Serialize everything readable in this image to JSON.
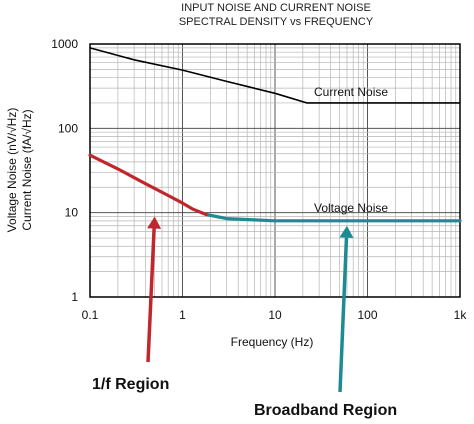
{
  "chart_data": {
    "type": "line",
    "title": "INPUT NOISE AND CURRENT NOISE",
    "subtitle": "SPECTRAL DENSITY vs FREQUENCY",
    "xlabel": "Frequency (Hz)",
    "ylabel_line1": "Voltage Noise (nV/√Hz)",
    "ylabel_line2": "Current Noise (fA/√Hz)",
    "x_scale": "log",
    "y_scale": "log",
    "xlim": [
      0.1,
      1000
    ],
    "ylim": [
      1,
      1000
    ],
    "grid": true,
    "x_ticks": [
      {
        "value": 0.1,
        "label": "0.1"
      },
      {
        "value": 1,
        "label": "1"
      },
      {
        "value": 10,
        "label": "10"
      },
      {
        "value": 100,
        "label": "100"
      },
      {
        "value": 1000,
        "label": "1k"
      }
    ],
    "y_ticks": [
      {
        "value": 1,
        "label": "1"
      },
      {
        "value": 10,
        "label": "10"
      },
      {
        "value": 100,
        "label": "100"
      },
      {
        "value": 1000,
        "label": "1000"
      }
    ],
    "series": [
      {
        "name": "Current Noise",
        "color": "#000000",
        "x": [
          0.1,
          0.3,
          1,
          3,
          10,
          22,
          100,
          1000
        ],
        "y": [
          900,
          650,
          490,
          360,
          260,
          200,
          200,
          200
        ]
      },
      {
        "name": "Voltage Noise",
        "color": "#1e8a94",
        "x": [
          1.8,
          3,
          10,
          100,
          1000
        ],
        "y": [
          9.5,
          8.5,
          8,
          8,
          8
        ]
      },
      {
        "name": "",
        "color": "#c0272d",
        "x": [
          0.1,
          0.2,
          0.4,
          0.7,
          1,
          1.3,
          1.8
        ],
        "y": [
          48,
          33,
          22,
          16,
          13,
          11,
          9.5
        ]
      }
    ],
    "annotations": [
      {
        "text": "1/f Region",
        "color": "#c0272d",
        "target_x": 0.5,
        "target_y": 9
      },
      {
        "text": "Broadband Region",
        "color": "#1e8a94",
        "target_x": 60,
        "target_y": 7
      }
    ]
  }
}
